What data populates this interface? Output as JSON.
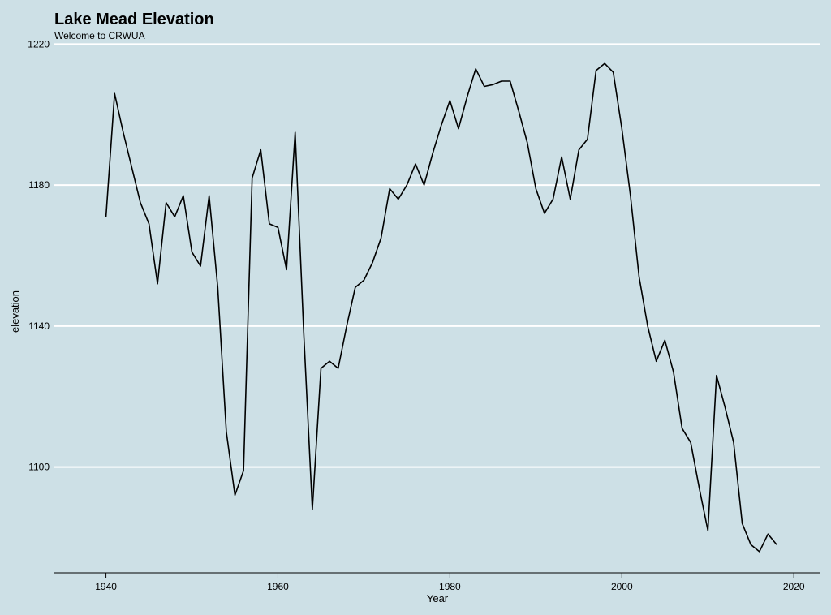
{
  "chart_data": {
    "type": "line",
    "title": "Lake Mead Elevation",
    "subtitle": "Welcome to CRWUA",
    "xlabel": "Year",
    "ylabel": "elevation",
    "xlim": [
      1934,
      2023
    ],
    "ylim": [
      1070,
      1221
    ],
    "x_ticks": [
      1940,
      1960,
      1980,
      2000,
      2020
    ],
    "y_ticks": [
      1100,
      1140,
      1180,
      1220
    ],
    "grid": "horizontal major lines (white)",
    "legend": "none",
    "colors": {
      "background": "#cde0e6",
      "grid": "#ffffff",
      "line": "#000000"
    },
    "series": [
      {
        "x": [
          1940,
          1941,
          1942,
          1943,
          1944,
          1945,
          1946,
          1947,
          1948,
          1949,
          1950,
          1951,
          1952,
          1953,
          1954,
          1955,
          1956,
          1957,
          1958,
          1959,
          1960,
          1961,
          1962,
          1963,
          1964,
          1965,
          1966,
          1967,
          1968,
          1969,
          1970,
          1971,
          1972,
          1973,
          1974,
          1975,
          1976,
          1977,
          1978,
          1979,
          1980,
          1981,
          1982,
          1983,
          1984,
          1985,
          1986,
          1987,
          1988,
          1989,
          1990,
          1991,
          1992,
          1993,
          1994,
          1995,
          1996,
          1997,
          1998,
          1999,
          2000,
          2001,
          2002,
          2003,
          2004,
          2005,
          2006,
          2007,
          2008,
          2009,
          2010,
          2011,
          2012,
          2013,
          2014,
          2015,
          2016,
          2017,
          2018
        ],
        "values": [
          1171,
          1206,
          1195,
          1185,
          1175,
          1169,
          1152,
          1175,
          1171,
          1177,
          1161,
          1157,
          1177,
          1151,
          1110,
          1092,
          1099,
          1182,
          1190,
          1169,
          1168,
          1156,
          1195,
          1138,
          1088,
          1128,
          1130,
          1128,
          1140,
          1151,
          1153,
          1158,
          1165,
          1179,
          1176,
          1180,
          1186,
          1180,
          1189,
          1197,
          1204,
          1196,
          1205,
          1213,
          1208,
          1208.5,
          1209.5,
          1209.5,
          1201,
          1192,
          1179,
          1172,
          1176,
          1188,
          1176,
          1190,
          1193,
          1212.5,
          1214.5,
          1212,
          1196,
          1177,
          1154,
          1140,
          1130,
          1136,
          1127,
          1111,
          1107,
          1094,
          1082,
          1126,
          1117,
          1107,
          1084,
          1078,
          1076,
          1081,
          1078
        ]
      }
    ]
  }
}
